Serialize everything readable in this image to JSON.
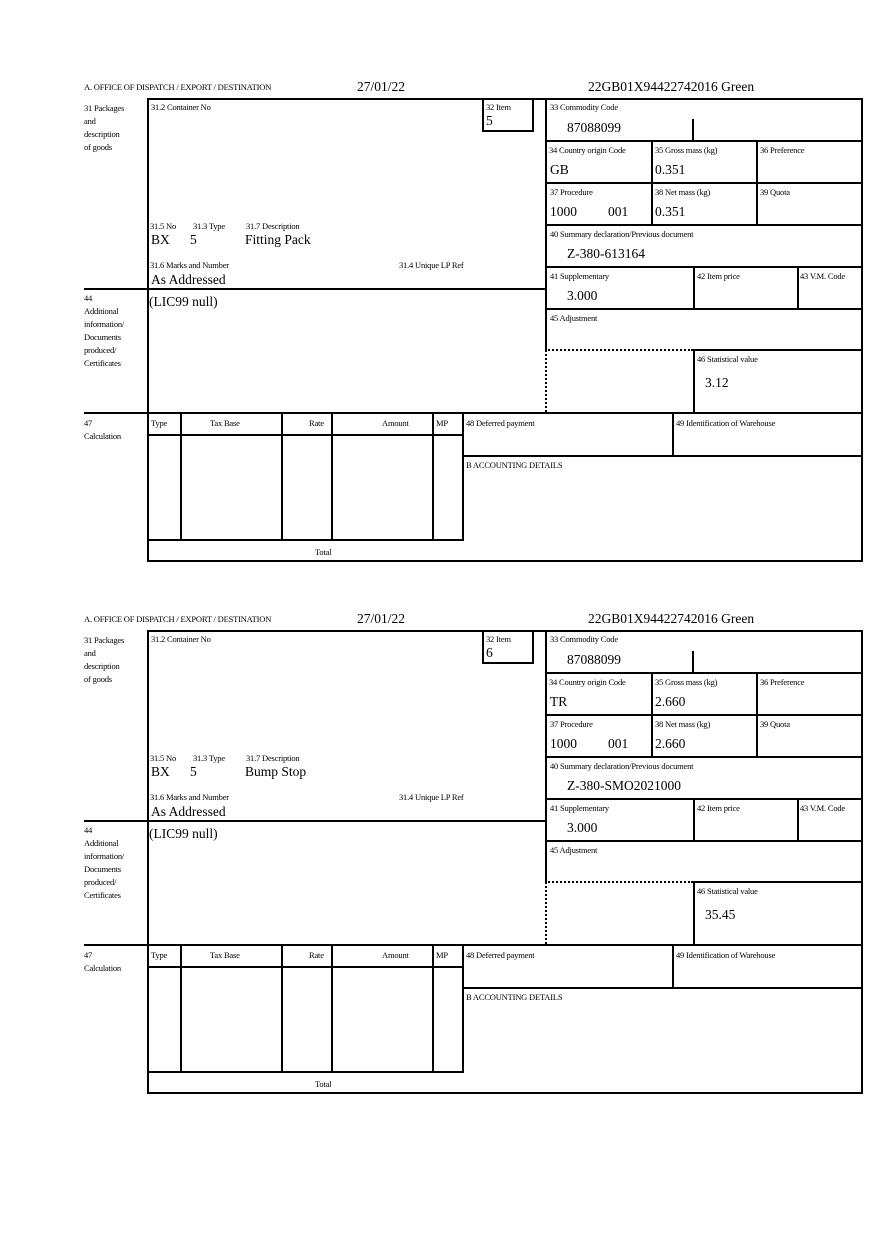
{
  "labels": {
    "office": "A.  OFFICE OF DISPATCH / EXPORT / DESTINATION",
    "box31": "31 Packages\nand\ndescription\nof goods",
    "container_no": "31.2 Container No",
    "item": "32 Item",
    "no": "31.5 No",
    "type": "31.3 Type",
    "description": "31.7 Description",
    "marks": "31.6 Marks and Number",
    "unique_lp": "31.4 Unique LP Ref",
    "box44": "44\nAdditional\ninformation/\nDocuments\nproduced/\nCertificates",
    "box47": "47\nCalculation",
    "commodity": "33 Commodity Code",
    "origin": "34 Country origin Code",
    "gross": "35 Gross mass (kg)",
    "preference": "36 Preference",
    "procedure": "37 Procedure",
    "net": "38 Net mass (kg)",
    "quota": "39 Quota",
    "summary": "40 Summary declaration/Previous document",
    "supplementary": "41 Supplementary",
    "item_price": "42 Item price",
    "vm_code": "43 V.M. Code",
    "adjustment": "45 Adjustment",
    "statistical": "46 Statistical value",
    "calc_type": "Type",
    "calc_tax_base": "Tax Base",
    "calc_rate": "Rate",
    "calc_amount": "Amount",
    "calc_mp": "MP",
    "deferred": "48 Deferred payment",
    "warehouse": "49 Identification of Warehouse",
    "accounting": "B ACCOUNTING DETAILS",
    "total": "Total"
  },
  "forms": [
    {
      "date": "27/01/22",
      "reference": "22GB01X94422742016   Green",
      "item": "5",
      "pkg_no": "BX",
      "pkg_type": "5",
      "description": "Fitting Pack",
      "marks": "As Addressed",
      "additional_info": "(LIC99 null)",
      "commodity_code": "87088099",
      "origin": "GB",
      "gross_mass": "0.351",
      "procedure": "1000",
      "procedure_extra": "001",
      "net_mass": "0.351",
      "summary_doc": "Z-380-613164",
      "supplementary": "3.000",
      "statistical_value": "3.12"
    },
    {
      "date": "27/01/22",
      "reference": "22GB01X94422742016   Green",
      "item": "6",
      "pkg_no": "BX",
      "pkg_type": "5",
      "description": "Bump Stop",
      "marks": "As Addressed",
      "additional_info": "(LIC99 null)",
      "commodity_code": "87088099",
      "origin": "TR",
      "gross_mass": "2.660",
      "procedure": "1000",
      "procedure_extra": "001",
      "net_mass": "2.660",
      "summary_doc": "Z-380-SMO2021000",
      "supplementary": "3.000",
      "statistical_value": "35.45"
    }
  ]
}
